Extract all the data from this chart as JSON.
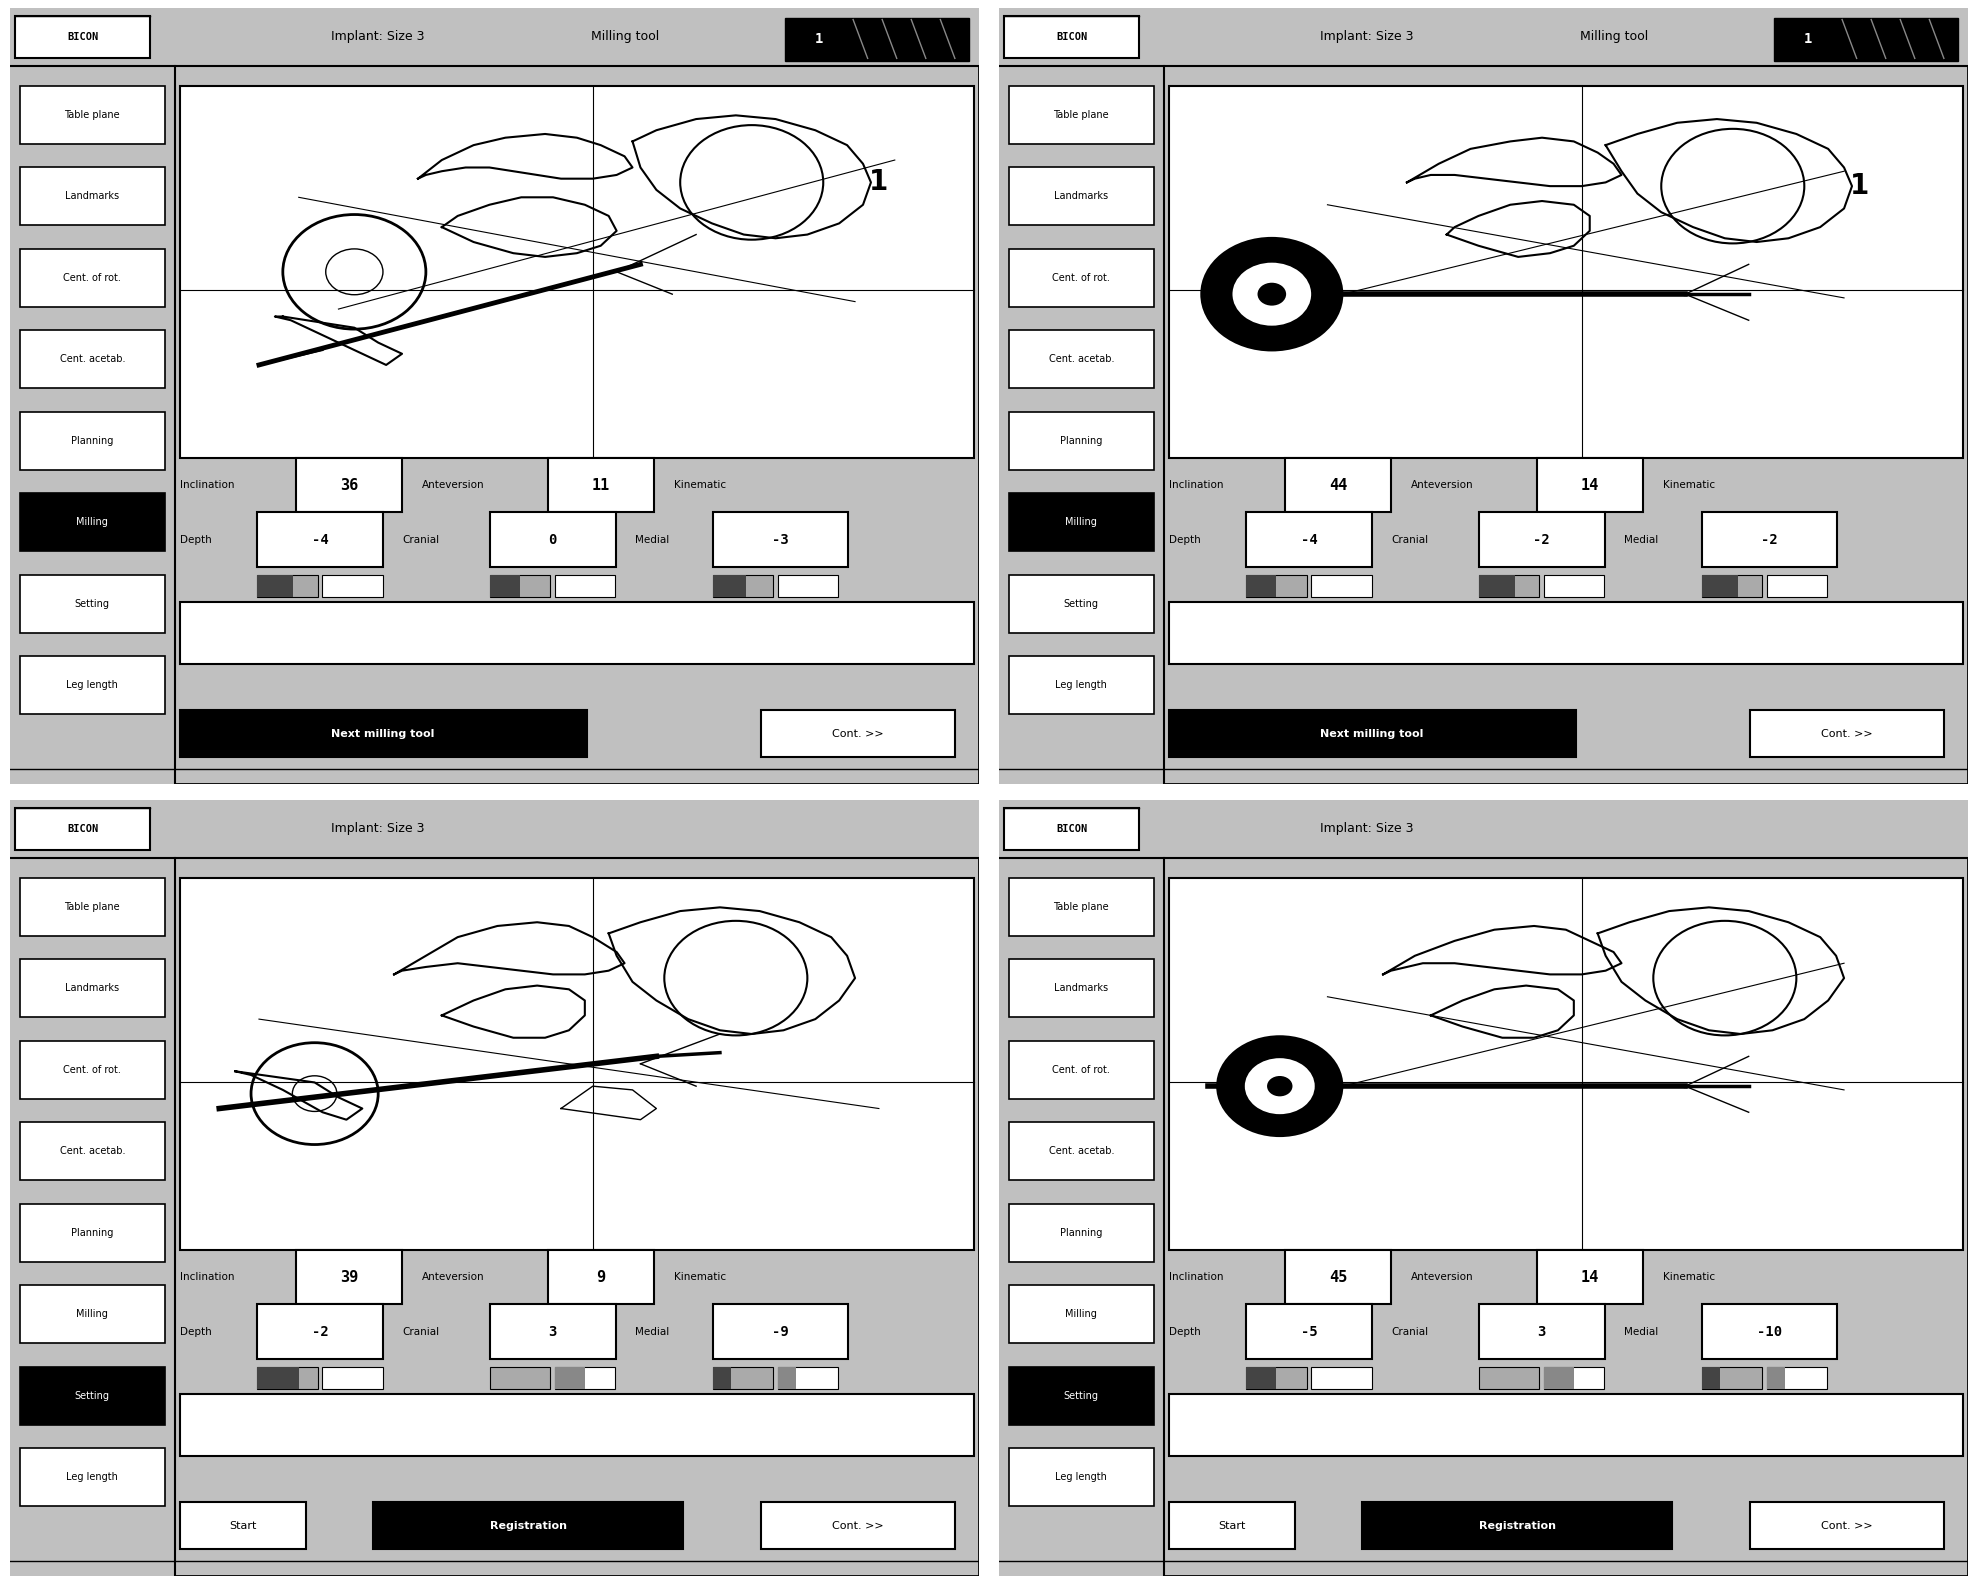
{
  "panels": [
    {
      "title": "Implant: Size 3",
      "milling_tool_label": "Milling tool",
      "milling_tool_num": "1",
      "menu_items": [
        "Table plane",
        "Landmarks",
        "Cent. of rot.",
        "Cent. acetab.",
        "Planning",
        "Milling",
        "Setting",
        "Leg length"
      ],
      "active_menu": "Milling",
      "inclination": "36",
      "anteversion": "11",
      "depth": "-4",
      "cranial": "0",
      "medial": "-3",
      "bottom_left": "Next milling tool",
      "bottom_right": "Cont. >>",
      "has_start": false
    },
    {
      "title": "Implant: Size 3",
      "milling_tool_label": "Milling tool",
      "milling_tool_num": "1",
      "menu_items": [
        "Table plane",
        "Landmarks",
        "Cent. of rot.",
        "Cent. acetab.",
        "Planning",
        "Milling",
        "Setting",
        "Leg length"
      ],
      "active_menu": "Milling",
      "inclination": "44",
      "anteversion": "14",
      "depth": "-4",
      "cranial": "-2",
      "medial": "-2",
      "bottom_left": "Next milling tool",
      "bottom_right": "Cont. >>",
      "has_start": false
    },
    {
      "title": "Implant: Size 3",
      "milling_tool_label": null,
      "milling_tool_num": null,
      "menu_items": [
        "Table plane",
        "Landmarks",
        "Cent. of rot.",
        "Cent. acetab.",
        "Planning",
        "Milling",
        "Setting",
        "Leg length"
      ],
      "active_menu": "Setting",
      "inclination": "39",
      "anteversion": "9",
      "depth": "-2",
      "cranial": "3",
      "medial": "-9",
      "bottom_left": "Start",
      "bottom_center": "Registration",
      "bottom_right": "Cont. >>",
      "has_start": true
    },
    {
      "title": "Implant: Size 3",
      "milling_tool_label": null,
      "milling_tool_num": null,
      "menu_items": [
        "Table plane",
        "Landmarks",
        "Cent. of rot.",
        "Cent. acetab.",
        "Planning",
        "Milling",
        "Setting",
        "Leg length"
      ],
      "active_menu": "Setting",
      "inclination": "45",
      "anteversion": "14",
      "depth": "-5",
      "cranial": "3",
      "medial": "-10",
      "bottom_left": "Start",
      "bottom_center": "Registration",
      "bottom_right": "Cont. >>",
      "has_start": true
    }
  ]
}
